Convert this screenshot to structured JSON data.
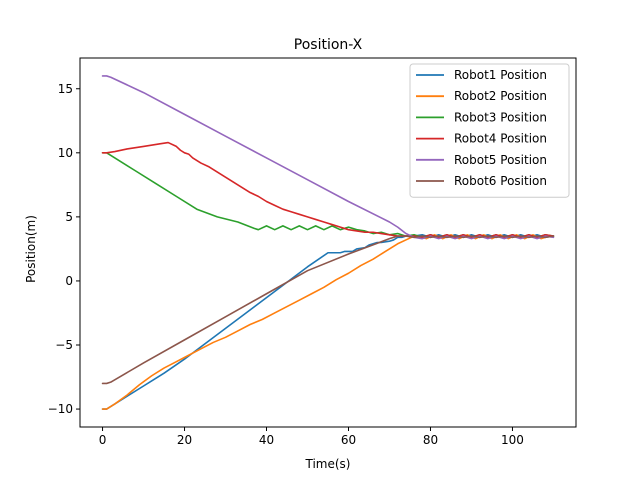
{
  "chart_data": {
    "type": "line",
    "title": "Position-X",
    "xlabel": "Time(s)",
    "ylabel": "Position(m)",
    "xlim": [
      -5.5,
      115.5
    ],
    "ylim": [
      -11.4,
      17.4
    ],
    "xticks": [
      0,
      20,
      40,
      60,
      80,
      100
    ],
    "yticks": [
      -10,
      -5,
      0,
      5,
      10,
      15
    ],
    "grid": false,
    "legend_position": "top-right",
    "series": [
      {
        "name": "Robot1 Position",
        "color": "#1f77b4",
        "x": [
          0,
          1,
          3,
          6,
          10,
          15,
          20,
          25,
          30,
          35,
          40,
          45,
          50,
          55,
          58,
          59,
          60,
          61,
          62,
          64,
          65,
          66,
          67,
          68,
          70,
          71,
          72,
          73,
          74,
          76,
          78,
          80,
          82,
          84,
          86,
          88,
          90,
          92,
          94,
          96,
          98,
          100,
          102,
          104,
          106,
          108,
          110
        ],
        "y": [
          -10,
          -10,
          -9.6,
          -9,
          -8.2,
          -7.2,
          -6.1,
          -4.9,
          -3.7,
          -2.5,
          -1.3,
          -0.1,
          1.1,
          2.2,
          2.2,
          2.3,
          2.3,
          2.3,
          2.5,
          2.6,
          2.8,
          2.9,
          3.0,
          3.0,
          3.1,
          3.2,
          3.4,
          3.4,
          3.5,
          3.5,
          3.6,
          3.4,
          3.6,
          3.4,
          3.6,
          3.4,
          3.6,
          3.4,
          3.6,
          3.4,
          3.6,
          3.4,
          3.6,
          3.4,
          3.6,
          3.4,
          3.5
        ]
      },
      {
        "name": "Robot2 Position",
        "color": "#ff7f0e",
        "x": [
          0,
          1,
          3,
          6,
          9,
          12,
          15,
          18,
          21,
          24,
          27,
          30,
          33,
          36,
          39,
          42,
          45,
          48,
          51,
          54,
          57,
          60,
          63,
          66,
          69,
          72,
          74,
          76,
          77,
          79,
          81,
          83,
          85,
          87,
          89,
          91,
          93,
          95,
          97,
          99,
          101,
          103,
          105,
          107,
          109
        ],
        "y": [
          -10,
          -10,
          -9.6,
          -8.9,
          -8.1,
          -7.4,
          -6.8,
          -6.3,
          -5.8,
          -5.3,
          -4.8,
          -4.4,
          -3.9,
          -3.4,
          -3.0,
          -2.5,
          -2.0,
          -1.5,
          -1.0,
          -0.5,
          0.1,
          0.6,
          1.2,
          1.7,
          2.3,
          2.9,
          3.2,
          3.5,
          3.5,
          3.3,
          3.6,
          3.3,
          3.6,
          3.3,
          3.6,
          3.3,
          3.6,
          3.3,
          3.6,
          3.3,
          3.6,
          3.3,
          3.6,
          3.3,
          3.5
        ]
      },
      {
        "name": "Robot3 Position",
        "color": "#2ca02c",
        "x": [
          0,
          1,
          3,
          8,
          13,
          18,
          23,
          28,
          33,
          37,
          38,
          40,
          42,
          44,
          46,
          48,
          50,
          52,
          54,
          56,
          58,
          60,
          62,
          64,
          66,
          68,
          70,
          72,
          74,
          76,
          78,
          80,
          82,
          84,
          86,
          88,
          90,
          92,
          94,
          96,
          98,
          100,
          102,
          104,
          106,
          108,
          110
        ],
        "y": [
          10,
          10,
          9.6,
          8.6,
          7.6,
          6.6,
          5.6,
          5.0,
          4.6,
          4.1,
          4.0,
          4.3,
          4.0,
          4.3,
          4.0,
          4.3,
          4.0,
          4.3,
          4.0,
          4.3,
          4.0,
          4.2,
          4.0,
          3.9,
          3.7,
          3.8,
          3.6,
          3.7,
          3.5,
          3.6,
          3.4,
          3.6,
          3.4,
          3.6,
          3.4,
          3.6,
          3.4,
          3.6,
          3.4,
          3.6,
          3.4,
          3.6,
          3.4,
          3.6,
          3.4,
          3.6,
          3.5
        ]
      },
      {
        "name": "Robot4 Position",
        "color": "#d62728",
        "x": [
          0,
          1,
          3,
          6,
          10,
          14,
          16,
          18,
          19,
          20,
          21,
          22,
          24,
          26,
          28,
          30,
          32,
          34,
          36,
          38,
          40,
          42,
          44,
          46,
          48,
          50,
          52,
          54,
          56,
          58,
          60,
          62,
          64,
          66,
          68,
          70,
          72,
          74,
          76,
          78,
          80,
          82,
          84,
          86,
          88,
          90,
          92,
          94,
          96,
          98,
          100,
          102,
          104,
          106,
          108,
          110
        ],
        "y": [
          10,
          10,
          10.1,
          10.3,
          10.5,
          10.7,
          10.8,
          10.5,
          10.2,
          10.0,
          9.9,
          9.6,
          9.2,
          8.9,
          8.5,
          8.1,
          7.7,
          7.3,
          6.9,
          6.6,
          6.2,
          5.9,
          5.6,
          5.4,
          5.2,
          5.0,
          4.8,
          4.6,
          4.4,
          4.2,
          4.0,
          3.9,
          3.8,
          3.8,
          3.7,
          3.6,
          3.5,
          3.5,
          3.5,
          3.4,
          3.6,
          3.4,
          3.6,
          3.4,
          3.6,
          3.4,
          3.6,
          3.4,
          3.6,
          3.4,
          3.6,
          3.4,
          3.6,
          3.4,
          3.6,
          3.5
        ]
      },
      {
        "name": "Robot5 Position",
        "color": "#9467bd",
        "x": [
          0,
          1,
          2,
          10,
          20,
          30,
          40,
          50,
          60,
          70,
          72,
          74,
          76,
          78,
          80,
          82,
          84,
          86,
          88,
          90,
          92,
          94,
          96,
          98,
          100,
          102,
          104,
          106,
          108,
          110
        ],
        "y": [
          16,
          16,
          15.9,
          14.7,
          13.0,
          11.3,
          9.6,
          7.9,
          6.2,
          4.6,
          4.2,
          3.7,
          3.4,
          3.3,
          3.5,
          3.3,
          3.5,
          3.3,
          3.5,
          3.3,
          3.5,
          3.3,
          3.5,
          3.3,
          3.5,
          3.3,
          3.5,
          3.3,
          3.5,
          3.4
        ]
      },
      {
        "name": "Robot6 Position",
        "color": "#8c564b",
        "x": [
          0,
          1,
          2,
          10,
          20,
          30,
          40,
          50,
          60,
          70,
          72,
          74,
          76,
          78,
          80,
          82,
          84,
          86,
          88,
          90,
          92,
          94,
          96,
          98,
          100,
          102,
          104,
          106,
          108,
          110
        ],
        "y": [
          -8,
          -8,
          -7.9,
          -6.4,
          -4.6,
          -2.8,
          -1.0,
          0.8,
          2.1,
          3.3,
          3.5,
          3.5,
          3.4,
          3.5,
          3.4,
          3.5,
          3.4,
          3.5,
          3.4,
          3.5,
          3.4,
          3.5,
          3.4,
          3.5,
          3.4,
          3.5,
          3.4,
          3.5,
          3.4,
          3.5
        ]
      }
    ]
  }
}
